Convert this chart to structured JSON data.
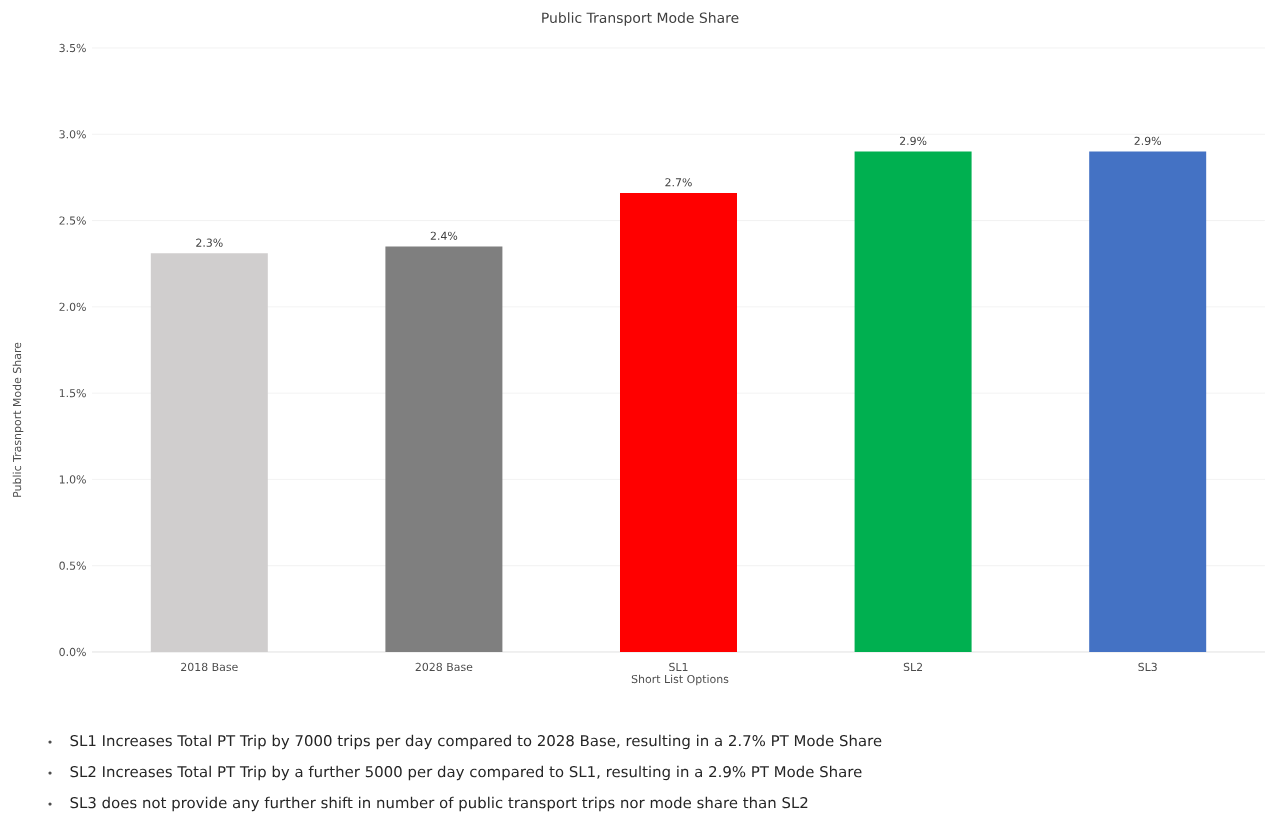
{
  "chart_data": {
    "type": "bar",
    "title": "Public Transport Mode Share",
    "xlabel": "Short List Options",
    "ylabel": "Public Trasnport Mode Share",
    "categories": [
      "2018  Base",
      "2028 Base",
      "SL1",
      "SL2",
      "SL3"
    ],
    "values": [
      2.31,
      2.35,
      2.66,
      2.9,
      2.9
    ],
    "colors": [
      "#d0cece",
      "#7f7f7f",
      "#ff0000",
      "#00b050",
      "#4472c4"
    ],
    "value_labels": [
      "2.3%",
      "2.4%",
      "2.7%",
      "2.9%",
      "2.9%"
    ],
    "ylim": [
      0,
      3.5
    ],
    "yticks": [
      {
        "value": 0,
        "label": "0.0%"
      },
      {
        "value": 0.5,
        "label": "0.5%"
      },
      {
        "value": 1,
        "label": "1.0%"
      },
      {
        "value": 1.5,
        "label": "1.5%"
      },
      {
        "value": 2,
        "label": "2.0%"
      },
      {
        "value": 2.5,
        "label": "2.5%"
      },
      {
        "value": 3,
        "label": "3.0%"
      },
      {
        "value": 3.5,
        "label": "3.5%"
      }
    ],
    "grid": "y",
    "annotations": [
      "SL1 Increases Total PT Trip by 7000 trips per day compared to 2028 Base, resulting in a 2.7% PT Mode Share",
      "SL2 Increases Total PT Trip by a further 5000 per day compared to SL1, resulting in a 2.9% PT Mode Share",
      "SL3 does not provide any further shift in number of public transport trips nor mode share than SL2"
    ]
  }
}
